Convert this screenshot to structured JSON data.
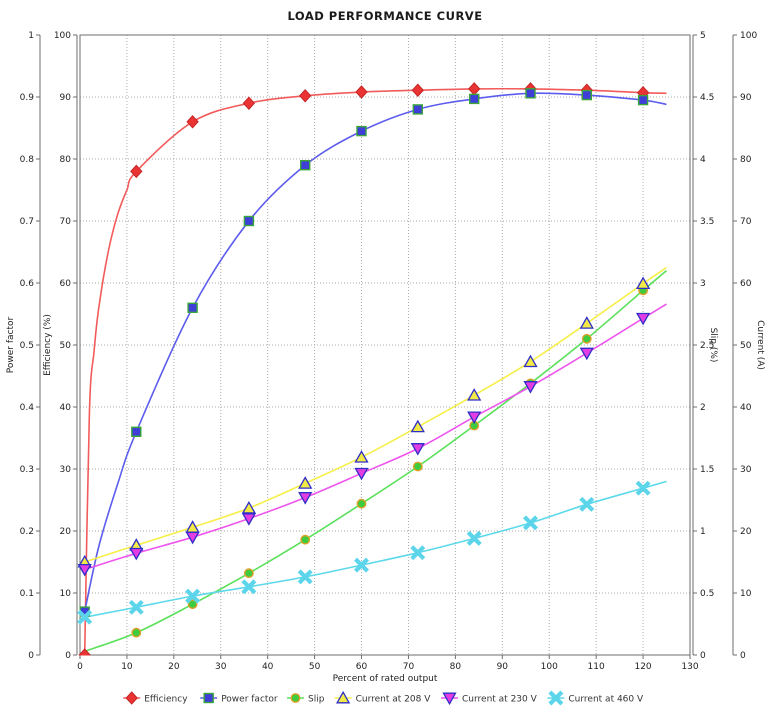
{
  "title": "LOAD PERFORMANCE CURVE",
  "style": {
    "grid_color": "#aaaaaa",
    "axis_color": "#6e6e6e",
    "text_color": "#222222",
    "background": "#ffffff"
  },
  "chart_data": {
    "type": "line",
    "title": "LOAD PERFORMANCE CURVE",
    "xlabel": "Percent of rated output",
    "grid": true,
    "legend_position": "bottom",
    "x_axis": {
      "min": 0,
      "max": 130,
      "step": 10
    },
    "y_axes": [
      {
        "id": "power_factor",
        "label": "Power factor",
        "min": 0,
        "max": 1,
        "step": 0.1,
        "side": "left",
        "offset": 0
      },
      {
        "id": "efficiency",
        "label": "Efficiency (%)",
        "min": 0,
        "max": 100,
        "step": 10,
        "side": "left",
        "offset": 1
      },
      {
        "id": "slip",
        "label": "Slip (%)",
        "min": 0,
        "max": 5,
        "step": 0.5,
        "side": "right",
        "offset": 0
      },
      {
        "id": "current",
        "label": "Current (A)",
        "min": 0,
        "max": 100,
        "step": 10,
        "side": "right",
        "offset": 1
      }
    ],
    "series": [
      {
        "name": "Efficiency",
        "axis": "efficiency",
        "marker": "diamond",
        "line_color": "#f25b5b",
        "fill": "#ea3434",
        "edge": "#c62525",
        "points": [
          [
            1,
            0
          ],
          [
            12,
            78
          ],
          [
            24,
            86
          ],
          [
            36,
            89
          ],
          [
            48,
            90.2
          ],
          [
            60,
            90.8
          ],
          [
            72,
            91.1
          ],
          [
            84,
            91.3
          ],
          [
            96,
            91.3
          ],
          [
            108,
            91.1
          ],
          [
            120,
            90.7
          ]
        ],
        "extra_curve_points": [
          [
            2,
            39
          ],
          [
            3,
            49
          ],
          [
            4,
            56
          ],
          [
            6,
            65
          ],
          [
            8,
            71
          ],
          [
            10,
            75
          ],
          [
            125,
            90.6
          ]
        ]
      },
      {
        "name": "Power factor",
        "axis": "power_factor",
        "marker": "square",
        "line_color": "#5c5cee",
        "fill": "#3f3fd8",
        "edge": "#3aa53a",
        "points": [
          [
            1,
            0.07
          ],
          [
            12,
            0.36
          ],
          [
            24,
            0.56
          ],
          [
            36,
            0.7
          ],
          [
            48,
            0.79
          ],
          [
            60,
            0.845
          ],
          [
            72,
            0.88
          ],
          [
            84,
            0.897
          ],
          [
            96,
            0.906
          ],
          [
            108,
            0.903
          ],
          [
            120,
            0.895
          ]
        ],
        "extra_curve_points": [
          [
            4,
            0.175
          ],
          [
            8,
            0.275
          ],
          [
            125,
            0.888
          ]
        ]
      },
      {
        "name": "Slip",
        "axis": "slip",
        "marker": "circle",
        "line_color": "#5ae05a",
        "fill": "#3ecc3e",
        "edge": "#dd9f27",
        "points": [
          [
            12,
            0.18
          ],
          [
            24,
            0.41
          ],
          [
            36,
            0.66
          ],
          [
            48,
            0.93
          ],
          [
            60,
            1.22
          ],
          [
            72,
            1.52
          ],
          [
            84,
            1.85
          ],
          [
            96,
            2.19
          ],
          [
            108,
            2.55
          ],
          [
            120,
            2.94
          ]
        ],
        "extra_curve_points": [
          [
            1,
            0.03
          ],
          [
            125,
            3.1
          ]
        ]
      },
      {
        "name": "Current at 208 V",
        "axis": "current",
        "marker": "triangle-up",
        "line_color": "#f6ef47",
        "fill": "#f2ea45",
        "edge": "#2e2ec8",
        "points": [
          [
            1,
            15
          ],
          [
            12,
            17.7
          ],
          [
            24,
            20.6
          ],
          [
            36,
            23.7
          ],
          [
            48,
            27.7
          ],
          [
            60,
            31.9
          ],
          [
            72,
            36.8
          ],
          [
            84,
            41.9
          ],
          [
            96,
            47.3
          ],
          [
            108,
            53.5
          ],
          [
            120,
            59.9
          ]
        ],
        "extra_curve_points": [
          [
            125,
            62.5
          ]
        ]
      },
      {
        "name": "Current at 230 V",
        "axis": "current",
        "marker": "triangle-down",
        "line_color": "#ee55ee",
        "fill": "#e33ce3",
        "edge": "#2e2ec8",
        "points": [
          [
            1,
            13.8
          ],
          [
            12,
            16.4
          ],
          [
            24,
            19
          ],
          [
            36,
            22
          ],
          [
            48,
            25.4
          ],
          [
            60,
            29.3
          ],
          [
            72,
            33.3
          ],
          [
            84,
            38.4
          ],
          [
            96,
            43.3
          ],
          [
            108,
            48.7
          ],
          [
            120,
            54.3
          ]
        ],
        "extra_curve_points": [
          [
            125,
            56.6
          ]
        ]
      },
      {
        "name": "Current at 460 V",
        "axis": "current",
        "marker": "x-cross",
        "line_color": "#5cd9ea",
        "fill": "#5cd5ea",
        "edge": "#5cd5ea",
        "points": [
          [
            1,
            6.1
          ],
          [
            12,
            7.7
          ],
          [
            24,
            9.5
          ],
          [
            36,
            11
          ],
          [
            48,
            12.6
          ],
          [
            60,
            14.5
          ],
          [
            72,
            16.5
          ],
          [
            84,
            18.8
          ],
          [
            96,
            21.3
          ],
          [
            108,
            24.3
          ],
          [
            120,
            26.9
          ]
        ],
        "extra_curve_points": [
          [
            125,
            28
          ]
        ]
      }
    ]
  }
}
